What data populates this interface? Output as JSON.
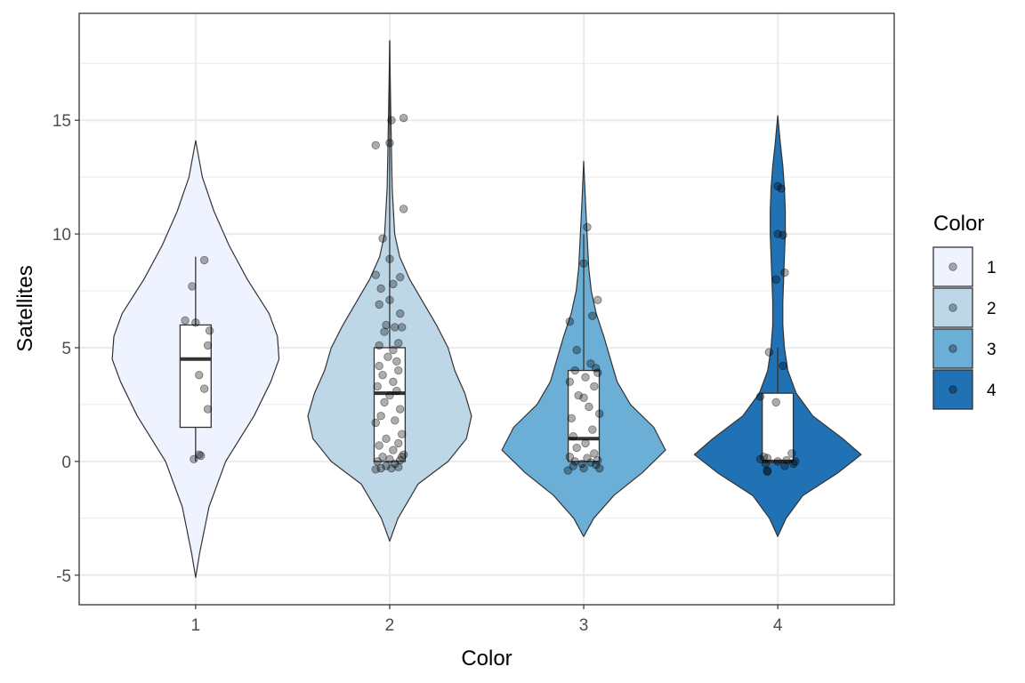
{
  "chart_data": {
    "type": "violin",
    "title": "",
    "xlabel": "Color",
    "ylabel": "Satellites",
    "categories": [
      "1",
      "2",
      "3",
      "4"
    ],
    "ylim": [
      -6.3,
      19.7
    ],
    "yticks": [
      -5,
      0,
      5,
      10,
      15
    ],
    "ytick_labels": [
      "-5",
      "0",
      "5",
      "10",
      "15"
    ],
    "grid": true,
    "legend": {
      "title": "Color",
      "position": "right",
      "entries": [
        "1",
        "2",
        "3",
        "4"
      ]
    },
    "fill_colors": [
      "#eff3ff",
      "#bdd7e7",
      "#6baed6",
      "#2171b5"
    ],
    "groups": [
      {
        "name": "1",
        "violin_range": [
          -5.1,
          14.1
        ],
        "density_profile": [
          [
            -5.1,
            0.0
          ],
          [
            -4,
            0.05
          ],
          [
            -2,
            0.16
          ],
          [
            0,
            0.36
          ],
          [
            2,
            0.7
          ],
          [
            3.5,
            0.9
          ],
          [
            4.5,
            1.0
          ],
          [
            5.5,
            0.98
          ],
          [
            6.5,
            0.88
          ],
          [
            8,
            0.62
          ],
          [
            9.5,
            0.4
          ],
          [
            11,
            0.22
          ],
          [
            12.5,
            0.08
          ],
          [
            14.1,
            0.0
          ]
        ],
        "box": {
          "q1": 1.5,
          "median": 4.5,
          "q3": 6.0,
          "whisker_low": 0.0,
          "whisker_high": 9.0
        },
        "points": [
          [
            0.05,
            8.85
          ],
          [
            -0.02,
            7.7
          ],
          [
            -0.06,
            6.2
          ],
          [
            0.0,
            6.1
          ],
          [
            0.08,
            5.75
          ],
          [
            0.07,
            5.1
          ],
          [
            0.02,
            3.8
          ],
          [
            0.05,
            3.2
          ],
          [
            0.07,
            2.3
          ],
          [
            0.02,
            0.3
          ],
          [
            -0.01,
            0.1
          ],
          [
            0.03,
            0.25
          ]
        ]
      },
      {
        "name": "2",
        "violin_range": [
          -3.5,
          18.5
        ],
        "density_profile": [
          [
            -3.5,
            0.0
          ],
          [
            -2.5,
            0.1
          ],
          [
            -1,
            0.34
          ],
          [
            0,
            0.7
          ],
          [
            1,
            0.92
          ],
          [
            2,
            0.98
          ],
          [
            3,
            0.9
          ],
          [
            4,
            0.78
          ],
          [
            5,
            0.7
          ],
          [
            6,
            0.56
          ],
          [
            7,
            0.4
          ],
          [
            8,
            0.24
          ],
          [
            9,
            0.12
          ],
          [
            10,
            0.06
          ],
          [
            12,
            0.03
          ],
          [
            14,
            0.02
          ],
          [
            16,
            0.01
          ],
          [
            18.5,
            0.0
          ]
        ],
        "box": {
          "q1": 0.0,
          "median": 3.0,
          "q3": 5.0,
          "whisker_low": 0.0,
          "whisker_high": 18.5
        },
        "points": [
          [
            0.01,
            15.0
          ],
          [
            0.08,
            15.1
          ],
          [
            0.0,
            14.0
          ],
          [
            -0.08,
            13.9
          ],
          [
            0.08,
            11.1
          ],
          [
            -0.04,
            9.8
          ],
          [
            0.0,
            8.9
          ],
          [
            -0.08,
            8.2
          ],
          [
            0.06,
            8.1
          ],
          [
            0.02,
            7.8
          ],
          [
            -0.05,
            7.6
          ],
          [
            0.0,
            7.1
          ],
          [
            -0.06,
            6.9
          ],
          [
            0.06,
            6.5
          ],
          [
            -0.02,
            6.0
          ],
          [
            0.03,
            5.9
          ],
          [
            0.07,
            5.9
          ],
          [
            -0.03,
            5.7
          ],
          [
            0.05,
            5.2
          ],
          [
            -0.06,
            5.1
          ],
          [
            0.02,
            4.9
          ],
          [
            -0.01,
            4.6
          ],
          [
            0.04,
            4.4
          ],
          [
            -0.06,
            4.2
          ],
          [
            0.05,
            4.0
          ],
          [
            -0.04,
            3.8
          ],
          [
            0.02,
            3.5
          ],
          [
            -0.07,
            3.3
          ],
          [
            0.04,
            3.1
          ],
          [
            0.0,
            2.9
          ],
          [
            -0.03,
            2.6
          ],
          [
            0.06,
            2.3
          ],
          [
            -0.05,
            2.0
          ],
          [
            0.03,
            1.8
          ],
          [
            -0.08,
            1.7
          ],
          [
            0.07,
            1.2
          ],
          [
            -0.02,
            1.0
          ],
          [
            0.05,
            0.8
          ],
          [
            -0.06,
            0.7
          ],
          [
            0.02,
            0.5
          ],
          [
            0.08,
            0.3
          ],
          [
            -0.04,
            0.2
          ],
          [
            0.0,
            0.1
          ],
          [
            0.06,
            0.05
          ],
          [
            -0.07,
            0.0
          ],
          [
            0.03,
            -0.1
          ],
          [
            -0.02,
            -0.2
          ],
          [
            0.05,
            -0.25
          ],
          [
            -0.05,
            -0.3
          ],
          [
            0.01,
            -0.3
          ],
          [
            -0.08,
            -0.35
          ],
          [
            0.07,
            0.2
          ]
        ]
      },
      {
        "name": "3",
        "violin_range": [
          -3.3,
          13.2
        ],
        "density_profile": [
          [
            -3.3,
            0.0
          ],
          [
            -2.5,
            0.12
          ],
          [
            -1.5,
            0.36
          ],
          [
            -0.5,
            0.7
          ],
          [
            0.5,
            0.98
          ],
          [
            1.5,
            0.84
          ],
          [
            2.5,
            0.56
          ],
          [
            3.5,
            0.4
          ],
          [
            4.5,
            0.32
          ],
          [
            5.5,
            0.24
          ],
          [
            6.5,
            0.15
          ],
          [
            7.5,
            0.09
          ],
          [
            8.5,
            0.06
          ],
          [
            10,
            0.04
          ],
          [
            11.5,
            0.02
          ],
          [
            13.2,
            0.0
          ]
        ],
        "box": {
          "q1": 0.0,
          "median": 1.0,
          "q3": 4.0,
          "whisker_low": 0.0,
          "whisker_high": 10.0
        },
        "points": [
          [
            0.02,
            10.3
          ],
          [
            0.0,
            8.7
          ],
          [
            0.08,
            7.1
          ],
          [
            0.05,
            6.4
          ],
          [
            -0.08,
            6.15
          ],
          [
            -0.04,
            4.9
          ],
          [
            0.04,
            4.3
          ],
          [
            0.07,
            4.1
          ],
          [
            -0.05,
            4.0
          ],
          [
            0.08,
            3.9
          ],
          [
            0.01,
            3.7
          ],
          [
            -0.08,
            3.5
          ],
          [
            0.06,
            3.3
          ],
          [
            -0.03,
            2.9
          ],
          [
            0.0,
            2.8
          ],
          [
            0.03,
            2.4
          ],
          [
            0.09,
            2.1
          ],
          [
            -0.07,
            1.9
          ],
          [
            0.05,
            1.4
          ],
          [
            -0.06,
            1.1
          ],
          [
            0.01,
            0.8
          ],
          [
            -0.04,
            0.6
          ],
          [
            0.06,
            0.35
          ],
          [
            -0.08,
            0.2
          ],
          [
            0.02,
            0.15
          ],
          [
            0.08,
            0.05
          ],
          [
            -0.05,
            0.0
          ],
          [
            0.04,
            -0.05
          ],
          [
            -0.01,
            -0.1
          ],
          [
            0.07,
            -0.15
          ],
          [
            -0.06,
            -0.2
          ],
          [
            0.0,
            -0.3
          ],
          [
            0.09,
            -0.3
          ],
          [
            -0.09,
            -0.4
          ]
        ]
      },
      {
        "name": "4",
        "violin_range": [
          -3.3,
          15.2
        ],
        "density_profile": [
          [
            -3.3,
            0.0
          ],
          [
            -2.5,
            0.1
          ],
          [
            -1.5,
            0.3
          ],
          [
            -0.5,
            0.72
          ],
          [
            0.3,
            1.0
          ],
          [
            1.0,
            0.78
          ],
          [
            2.0,
            0.42
          ],
          [
            3.0,
            0.22
          ],
          [
            4.0,
            0.12
          ],
          [
            5.0,
            0.08
          ],
          [
            6.0,
            0.06
          ],
          [
            7.0,
            0.06
          ],
          [
            8.0,
            0.07
          ],
          [
            9.0,
            0.08
          ],
          [
            10.0,
            0.09
          ],
          [
            11.0,
            0.09
          ],
          [
            12.0,
            0.08
          ],
          [
            13.0,
            0.06
          ],
          [
            14.0,
            0.03
          ],
          [
            15.2,
            0.0
          ]
        ],
        "box": {
          "q1": 0.0,
          "median": 0.0,
          "q3": 3.0,
          "whisker_low": 0.0,
          "whisker_high": 5.0
        },
        "points": [
          [
            0.0,
            12.1
          ],
          [
            0.02,
            12.0
          ],
          [
            0.0,
            10.0
          ],
          [
            0.03,
            9.95
          ],
          [
            0.04,
            8.3
          ],
          [
            -0.01,
            8.0
          ],
          [
            -0.05,
            4.8
          ],
          [
            0.03,
            4.2
          ],
          [
            -0.1,
            2.85
          ],
          [
            -0.01,
            2.6
          ],
          [
            0.08,
            0.35
          ],
          [
            -0.08,
            0.2
          ],
          [
            -0.06,
            0.15
          ],
          [
            -0.1,
            0.1
          ],
          [
            0.05,
            0.05
          ],
          [
            0.1,
            0.0
          ],
          [
            0.0,
            0.0
          ],
          [
            -0.07,
            -0.1
          ],
          [
            0.04,
            -0.2
          ],
          [
            0.09,
            -0.1
          ],
          [
            -0.06,
            -0.4
          ],
          [
            -0.06,
            -0.45
          ]
        ]
      }
    ]
  }
}
